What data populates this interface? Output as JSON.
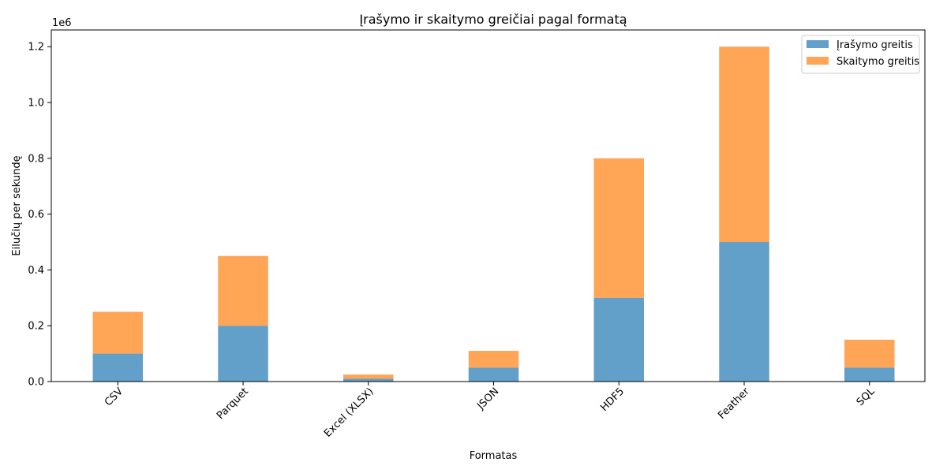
{
  "chart_data": {
    "type": "bar",
    "stacked": true,
    "title": "Įrašymo ir skaitymo greičiai pagal formatą",
    "xlabel": "Formatas",
    "ylabel": "Eilučių per sekundę",
    "y_offset_text": "1e6",
    "categories": [
      "CSV",
      "Parquet",
      "Excel (XLSX)",
      "JSON",
      "HDF5",
      "Feather",
      "SQL"
    ],
    "series": [
      {
        "name": "Įrašymo greitis",
        "color": "#1f77b4",
        "values": [
          100000,
          200000,
          10000,
          50000,
          300000,
          500000,
          50000
        ]
      },
      {
        "name": "Skaitymo greitis",
        "color": "#ff7f0e",
        "values": [
          150000,
          250000,
          15000,
          60000,
          500000,
          700000,
          100000
        ]
      }
    ],
    "ylim": [
      0,
      1260000
    ],
    "yticks": [
      0,
      200000,
      400000,
      600000,
      800000,
      1000000,
      1200000
    ],
    "ytick_labels": [
      "0.0",
      "0.2",
      "0.4",
      "0.6",
      "0.8",
      "1.0",
      "1.2"
    ],
    "xtick_rotation": 45,
    "bar_opacity": 0.7,
    "grid": false,
    "legend_position": "top-right"
  }
}
